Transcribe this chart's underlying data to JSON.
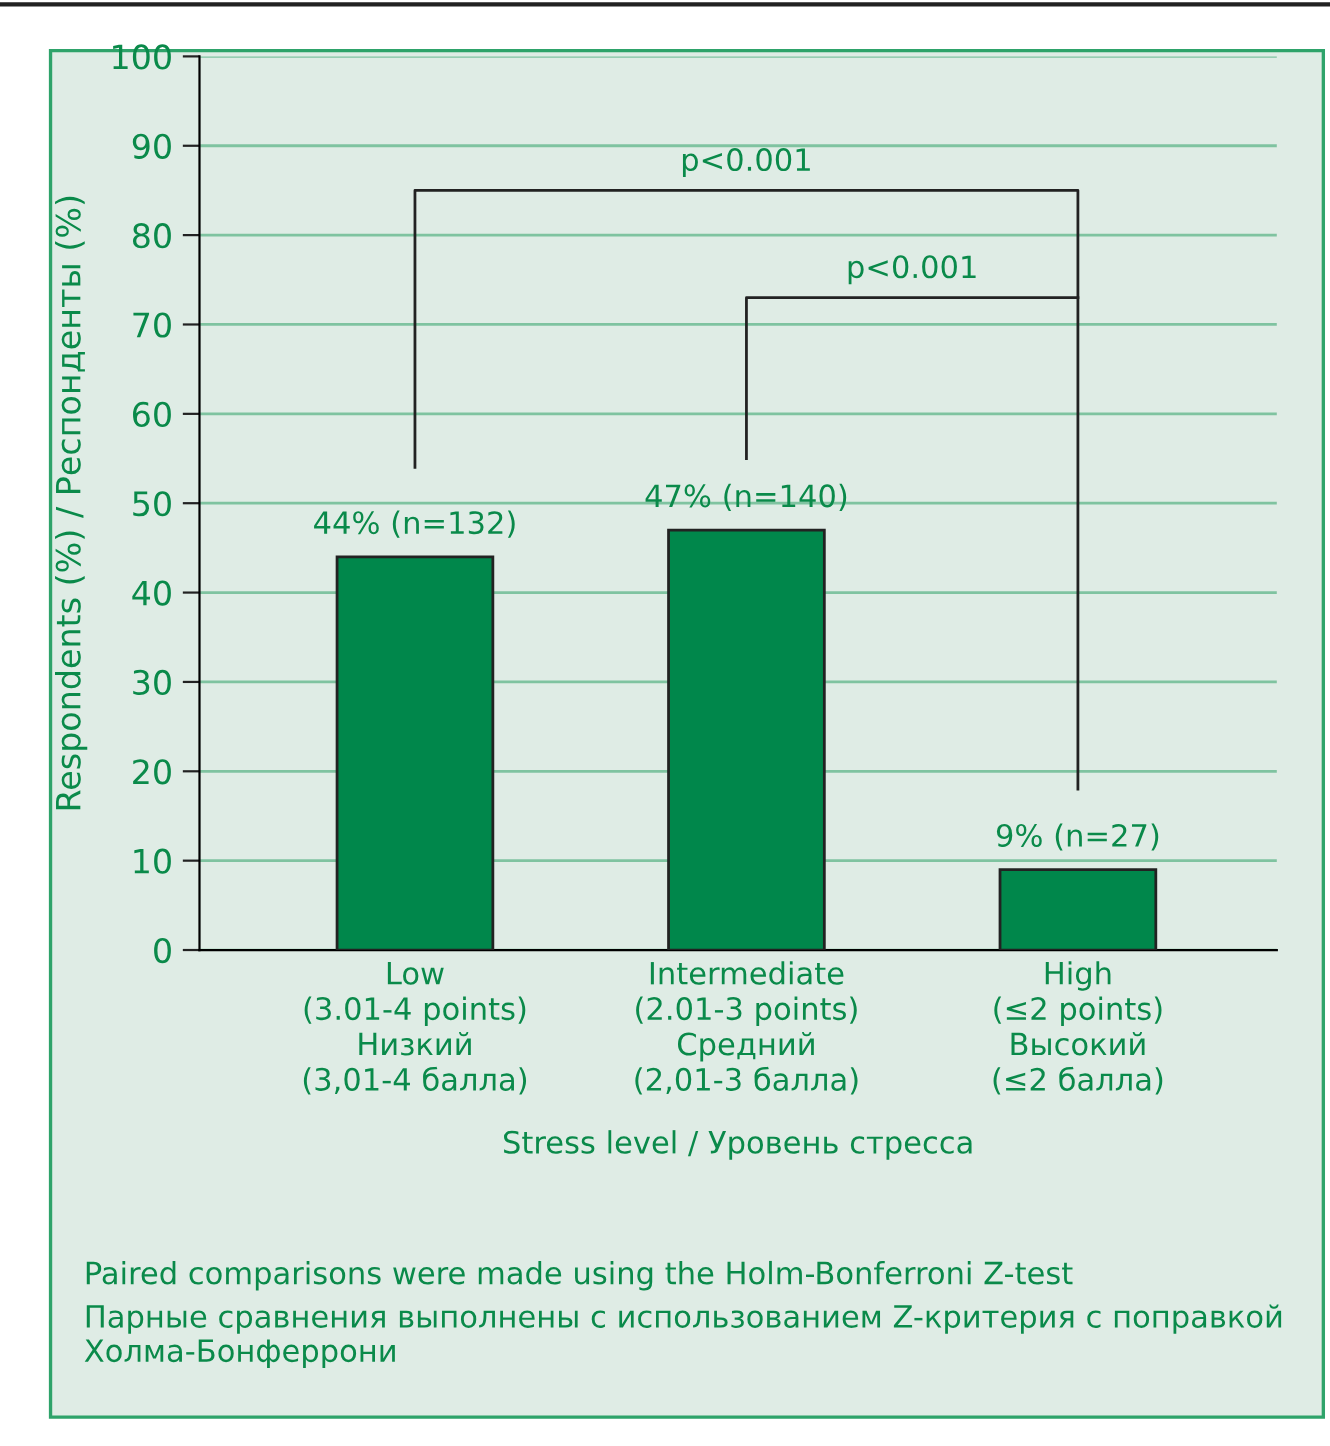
{
  "chart_data": {
    "type": "bar",
    "categories": [
      "Low\n(3.01-4 points)\nНизкий\n(3,01-4 балла)",
      "Intermediate\n(2.01-3 points)\nСредний\n(2,01-3 балла)",
      "High\n(≤2 points)\nВысокий\n(≤2 балла)"
    ],
    "values": [
      44,
      47,
      9
    ],
    "value_labels": [
      "44% (n=132)",
      "47% (n=140)",
      "9% (n=27)"
    ],
    "color": "#00874b",
    "xlabel": "Stress level / Уровень стресса",
    "ylabel": "Respondents (%) / Респонденты (%)",
    "ylim": [
      0,
      100
    ],
    "yticks": [
      0,
      10,
      20,
      30,
      40,
      50,
      60,
      70,
      80,
      90,
      100
    ],
    "grid": "y",
    "annotations": [
      "p<0.001",
      "p<0.001",
      "Paired comparisons were made using the Holm-Bonferroni Z-test",
      "Парные сравнения выполнены с использованием Z-критерия с поправкой Холма-Бонферрони"
    ]
  }
}
